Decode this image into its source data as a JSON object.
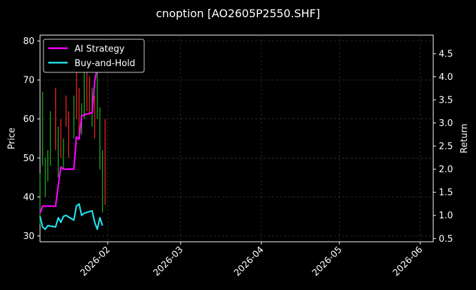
{
  "chart_data": {
    "type": "line",
    "title": "cnoption [AO2605P2550.SHF]",
    "ylabel": "Price",
    "y2label": "Return",
    "xlabel": "",
    "x_range": [
      "2026-01-06",
      "2026-06-06"
    ],
    "ylim": [
      28.5,
      81.5
    ],
    "y2lim": [
      0.43,
      4.9
    ],
    "y_ticks": [
      30,
      40,
      50,
      60,
      70,
      80
    ],
    "y2_ticks": [
      0.5,
      1.0,
      1.5,
      2.0,
      2.5,
      3.0,
      3.5,
      4.0,
      4.5
    ],
    "x_ticks": [
      "2026-02",
      "2026-03",
      "2026-04",
      "2026-05",
      "2026-06"
    ],
    "x_tick_dates": [
      "2026-02-01",
      "2026-03-01",
      "2026-04-01",
      "2026-05-01",
      "2026-06-01"
    ],
    "grid": true,
    "legend_position": "top-left",
    "series": [
      {
        "name": "AI Strategy",
        "color": "#ff00ff",
        "axis": "right",
        "x": [
          "2026-01-06",
          "2026-01-07",
          "2026-01-08",
          "2026-01-09",
          "2026-01-12",
          "2026-01-13",
          "2026-01-14",
          "2026-01-15",
          "2026-01-16",
          "2026-01-19",
          "2026-01-20",
          "2026-01-21",
          "2026-01-22",
          "2026-01-23",
          "2026-01-26",
          "2026-01-27",
          "2026-01-28",
          "2026-01-29",
          "2026-01-30"
        ],
        "values": [
          1.05,
          1.2,
          1.2,
          1.2,
          1.2,
          1.65,
          2.05,
          2.0,
          2.0,
          2.0,
          2.7,
          2.65,
          3.15,
          3.18,
          3.22,
          3.9,
          4.2,
          4.1,
          4.45
        ]
      },
      {
        "name": "Buy-and-Hold",
        "color": "#22e0ea",
        "axis": "right",
        "x": [
          "2026-01-06",
          "2026-01-07",
          "2026-01-08",
          "2026-01-09",
          "2026-01-12",
          "2026-01-13",
          "2026-01-14",
          "2026-01-15",
          "2026-01-16",
          "2026-01-19",
          "2026-01-20",
          "2026-01-21",
          "2026-01-22",
          "2026-01-23",
          "2026-01-26",
          "2026-01-27",
          "2026-01-28",
          "2026-01-29",
          "2026-01-30"
        ],
        "values": [
          0.98,
          0.75,
          0.7,
          0.78,
          0.75,
          0.95,
          0.85,
          0.98,
          1.0,
          0.9,
          1.2,
          1.25,
          1.0,
          1.05,
          1.1,
          0.85,
          0.7,
          0.95,
          0.78
        ]
      }
    ],
    "candles": {
      "up_color": "#22aa22",
      "down_color": "#ee2222",
      "items": [
        {
          "date": "2026-01-06",
          "low": 33.0,
          "high": 46.0
        },
        {
          "date": "2026-01-07",
          "low": 48.0,
          "high": 67.0
        },
        {
          "date": "2026-01-08",
          "low": 40.0,
          "high": 50.0
        },
        {
          "date": "2026-01-09",
          "low": 44.0,
          "high": 52.0
        },
        {
          "date": "2026-01-10",
          "low": 48.0,
          "high": 62.0
        },
        {
          "date": "2026-01-12",
          "low": 52.0,
          "high": 68.0
        },
        {
          "date": "2026-01-13",
          "low": 45.0,
          "high": 58.0
        },
        {
          "date": "2026-01-14",
          "low": 50.0,
          "high": 60.0
        },
        {
          "date": "2026-01-15",
          "low": 47.0,
          "high": 55.0
        },
        {
          "date": "2026-01-16",
          "low": 58.0,
          "high": 66.0
        },
        {
          "date": "2026-01-17",
          "low": 50.0,
          "high": 62.0
        },
        {
          "date": "2026-01-19",
          "low": 55.0,
          "high": 66.0
        },
        {
          "date": "2026-01-20",
          "low": 60.0,
          "high": 75.0
        },
        {
          "date": "2026-01-21",
          "low": 55.0,
          "high": 68.0
        },
        {
          "date": "2026-01-22",
          "low": 56.0,
          "high": 64.0
        },
        {
          "date": "2026-01-23",
          "low": 60.0,
          "high": 72.0
        },
        {
          "date": "2026-01-24",
          "low": 62.0,
          "high": 75.0
        },
        {
          "date": "2026-01-25",
          "low": 61.0,
          "high": 71.0
        },
        {
          "date": "2026-01-26",
          "low": 58.0,
          "high": 68.0
        },
        {
          "date": "2026-01-27",
          "low": 55.0,
          "high": 66.0
        },
        {
          "date": "2026-01-28",
          "low": 60.0,
          "high": 73.0
        },
        {
          "date": "2026-01-29",
          "low": 47.0,
          "high": 63.0
        },
        {
          "date": "2026-01-30",
          "low": 36.0,
          "high": 52.0
        },
        {
          "date": "2026-01-31",
          "low": 38.0,
          "high": 60.0
        }
      ],
      "direction": [
        "up",
        "up",
        "up",
        "up",
        "up",
        "down",
        "up",
        "down",
        "up",
        "down",
        "down",
        "up",
        "down",
        "down",
        "up",
        "up",
        "down",
        "down",
        "up",
        "down",
        "up",
        "up",
        "up",
        "down"
      ]
    }
  }
}
